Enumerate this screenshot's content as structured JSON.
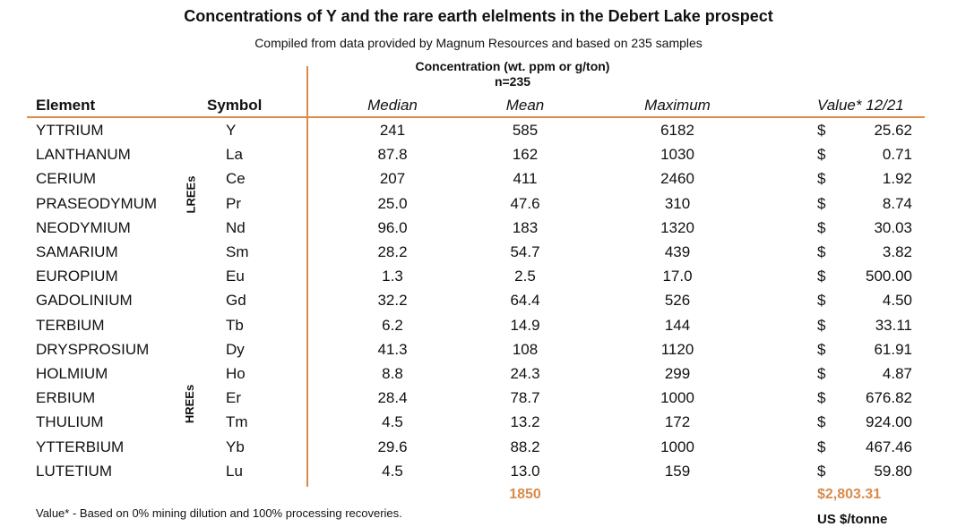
{
  "title": "Concentrations of Y and the rare earth elelments in the Debert Lake prospect",
  "subtitle": "Compiled from data provided by Magnum Resources and based on 235 samples",
  "concentration_header": {
    "line1": "Concentration (wt. ppm or g/ton)",
    "line2": "n=235"
  },
  "columns": {
    "element": "Element",
    "symbol": "Symbol",
    "median": "Median",
    "mean": "Mean",
    "maximum": "Maximum",
    "value": "Value* 12/21"
  },
  "group_labels": {
    "lree": "LREEs",
    "hree": "HREEs"
  },
  "currency_symbol": "$",
  "rows": [
    {
      "element": "YTTRIUM",
      "symbol": "Y",
      "median": "241",
      "mean": "585",
      "max": "6182",
      "value": "25.62"
    },
    {
      "element": "LANTHANUM",
      "symbol": "La",
      "median": "87.8",
      "mean": "162",
      "max": "1030",
      "value": "0.71"
    },
    {
      "element": "CERIUM",
      "symbol": "Ce",
      "median": "207",
      "mean": "411",
      "max": "2460",
      "value": "1.92"
    },
    {
      "element": "PRASEODYMUM",
      "symbol": "Pr",
      "median": "25.0",
      "mean": "47.6",
      "max": "310",
      "value": "8.74"
    },
    {
      "element": "NEODYMIUM",
      "symbol": "Nd",
      "median": "96.0",
      "mean": "183",
      "max": "1320",
      "value": "30.03"
    },
    {
      "element": "SAMARIUM",
      "symbol": "Sm",
      "median": "28.2",
      "mean": "54.7",
      "max": "439",
      "value": "3.82"
    },
    {
      "element": "EUROPIUM",
      "symbol": "Eu",
      "median": "1.3",
      "mean": "2.5",
      "max": "17.0",
      "value": "500.00"
    },
    {
      "element": "GADOLINIUM",
      "symbol": "Gd",
      "median": "32.2",
      "mean": "64.4",
      "max": "526",
      "value": "4.50"
    },
    {
      "element": "TERBIUM",
      "symbol": "Tb",
      "median": "6.2",
      "mean": "14.9",
      "max": "144",
      "value": "33.11"
    },
    {
      "element": "DRYSPROSIUM",
      "symbol": "Dy",
      "median": "41.3",
      "mean": "108",
      "max": "1120",
      "value": "61.91"
    },
    {
      "element": "HOLMIUM",
      "symbol": "Ho",
      "median": "8.8",
      "mean": "24.3",
      "max": "299",
      "value": "4.87"
    },
    {
      "element": "ERBIUM",
      "symbol": "Er",
      "median": "28.4",
      "mean": "78.7",
      "max": "1000",
      "value": "676.82"
    },
    {
      "element": "THULIUM",
      "symbol": "Tm",
      "median": "4.5",
      "mean": "13.2",
      "max": "172",
      "value": "924.00"
    },
    {
      "element": "YTTERBIUM",
      "symbol": "Yb",
      "median": "29.6",
      "mean": "88.2",
      "max": "1000",
      "value": "467.46"
    },
    {
      "element": "LUTETIUM",
      "symbol": "Lu",
      "median": "4.5",
      "mean": "13.0",
      "max": "159",
      "value": "59.80"
    }
  ],
  "totals": {
    "mean": "1850",
    "value": "$2,803.31"
  },
  "footnote": "Value* - Based on 0% mining dilution and 100% processing recoveries.",
  "unit_note": "US $/tonne",
  "colors": {
    "accent": "#d98b4a",
    "text": "#111111"
  }
}
